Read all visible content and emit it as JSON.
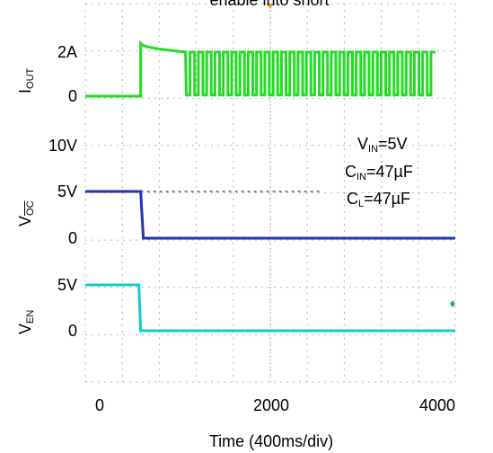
{
  "chart_data": {
    "type": "line",
    "title": "enable into short",
    "xlabel": "Time (400ms/div)",
    "x_ticks": [
      "0",
      "2000",
      "4000"
    ],
    "xlim": [
      -200,
      4000
    ],
    "grid": true,
    "conditions": {
      "vin": {
        "main": "V",
        "sub": "IN",
        "rest": "=5V"
      },
      "cin": {
        "main": "C",
        "sub": "IN",
        "rest": "=47µF"
      },
      "cl": {
        "main": "C",
        "sub": "L",
        "rest": "=47µF"
      }
    },
    "traces": [
      {
        "name": "I_OUT",
        "label_main": "I",
        "label_sub": "OUT",
        "color": "#22dd22",
        "ticks": [
          "2A",
          "0"
        ],
        "events": {
          "step_time": 450,
          "step_value": 2.4,
          "settle_value": 2.0,
          "settle_time": 1000,
          "pulse_low": 0.05,
          "pulse_high": 2.0,
          "pulse_period": 100
        }
      },
      {
        "name": "V_OC",
        "label_main": "V",
        "label_sub": "OC",
        "color": "#2233bb",
        "ticks": [
          "10V",
          "5V",
          "0"
        ],
        "events": {
          "high": 5,
          "fall_time": 450,
          "low": 0
        }
      },
      {
        "name": "V_EN",
        "label_main": "V",
        "label_sub": "EN",
        "color": "#11cccc",
        "ticks": [
          "5V",
          "0"
        ],
        "events": {
          "high": 5,
          "fall_time": 450,
          "low": 0
        }
      }
    ]
  }
}
